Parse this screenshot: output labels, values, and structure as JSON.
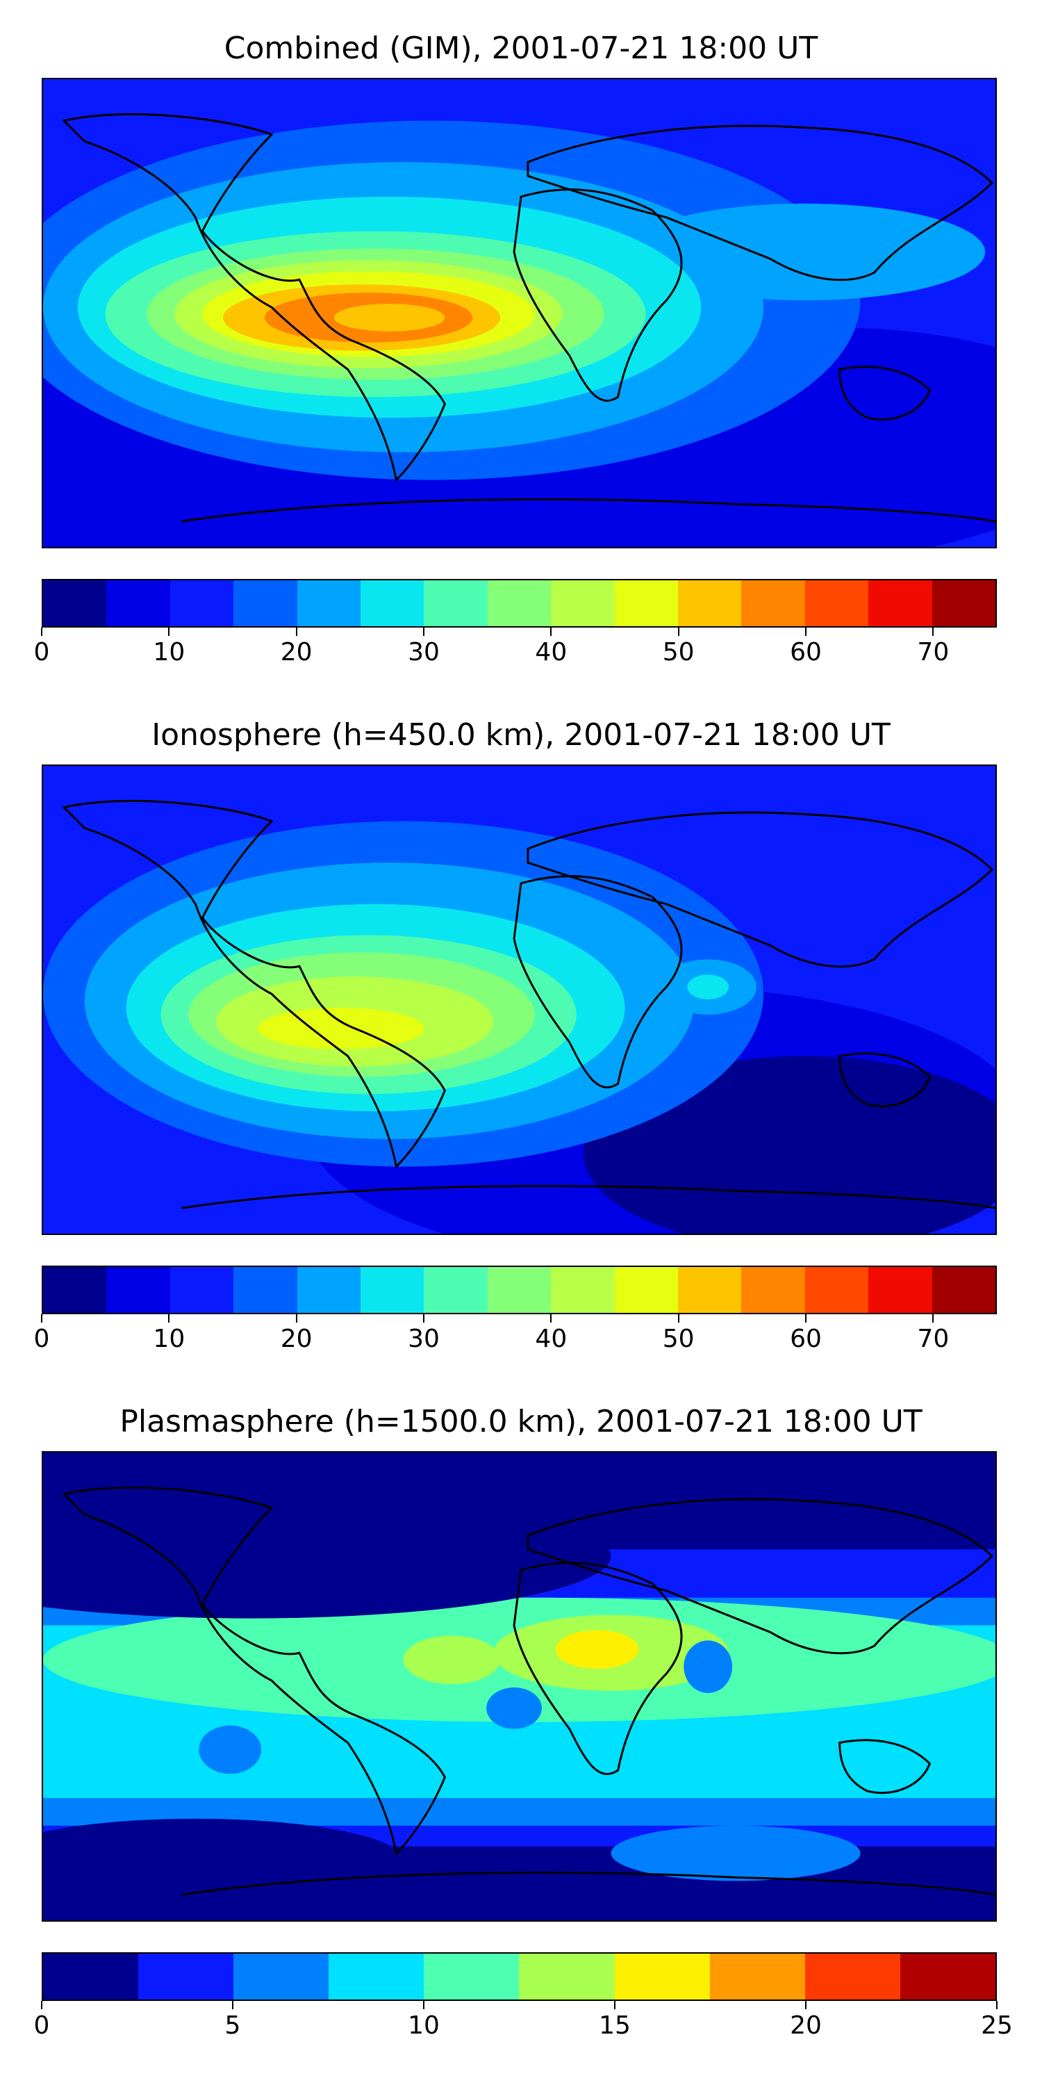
{
  "panels": [
    {
      "title": "Combined (GIM), 2001-07-21 18:00 UT",
      "colorbar": {
        "min": 0,
        "max": 75,
        "step": 5,
        "colors": [
          "#00008f",
          "#0000e6",
          "#0a1aff",
          "#0060ff",
          "#00a4ff",
          "#0ae6f0",
          "#4dfcb0",
          "#86ff78",
          "#b8ff48",
          "#e6ff10",
          "#ffc400",
          "#ff8400",
          "#ff4800",
          "#f00a00",
          "#a00000"
        ],
        "tick_labels": [
          "0",
          "10",
          "20",
          "30",
          "40",
          "50",
          "60",
          "70"
        ],
        "tick_values": [
          0,
          10,
          20,
          30,
          40,
          50,
          60,
          70
        ]
      }
    },
    {
      "title": "Ionosphere  (h=450.0 km), 2001-07-21 18:00 UT",
      "colorbar": {
        "min": 0,
        "max": 75,
        "step": 5,
        "colors": [
          "#00008f",
          "#0000e6",
          "#0a1aff",
          "#0060ff",
          "#00a4ff",
          "#0ae6f0",
          "#4dfcb0",
          "#86ff78",
          "#b8ff48",
          "#e6ff10",
          "#ffc400",
          "#ff8400",
          "#ff4800",
          "#f00a00",
          "#a00000"
        ],
        "tick_labels": [
          "0",
          "10",
          "20",
          "30",
          "40",
          "50",
          "60",
          "70"
        ],
        "tick_values": [
          0,
          10,
          20,
          30,
          40,
          50,
          60,
          70
        ]
      }
    },
    {
      "title": "Plasmasphere (h=1500.0 km), 2001-07-21 18:00 UT",
      "colorbar": {
        "min": 0,
        "max": 25,
        "step": 2.5,
        "colors": [
          "#00008f",
          "#0a1aff",
          "#0080ff",
          "#00e0ff",
          "#4dffb0",
          "#a8ff50",
          "#ffef00",
          "#ff9a00",
          "#ff3a00",
          "#b00000"
        ],
        "tick_labels": [
          "0",
          "5",
          "10",
          "15",
          "20",
          "25"
        ],
        "tick_values": [
          0,
          5,
          10,
          15,
          20,
          25
        ]
      }
    }
  ]
}
